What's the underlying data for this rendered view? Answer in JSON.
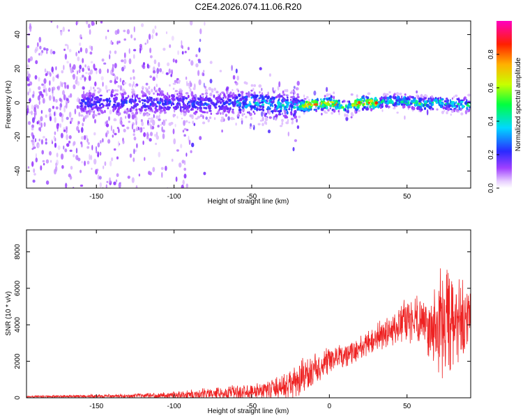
{
  "title": "C2E4.2026.074.11.06.R20",
  "chart_data": [
    {
      "type": "heatmap",
      "xlabel": "Height of straight line (km)",
      "ylabel": "Frequency (Hz)",
      "xlim": [
        -195,
        91
      ],
      "ylim": [
        -50,
        48
      ],
      "xticks": [
        -150,
        -100,
        -50,
        0,
        50
      ],
      "yticks": [
        -40,
        -20,
        0,
        20,
        40
      ],
      "colorbar": {
        "label": "Normalized spectral amplitude",
        "range": [
          0.0,
          1.0
        ],
        "ticks": [
          "0.0",
          "0.2",
          "0.4",
          "0.6",
          "0.8"
        ],
        "colormap": "rainbow (white-violet-blue-cyan-green-yellow-red-magenta)"
      },
      "ridge": {
        "description": "frequency centroid vs height; strong narrow band near 0 Hz for height > -20 km",
        "x": [
          -195,
          -150,
          -120,
          -100,
          -80,
          -60,
          -50,
          -40,
          -30,
          -20,
          -10,
          0,
          5,
          10,
          20,
          30,
          40,
          50,
          60,
          70,
          80,
          91
        ],
        "y": [
          0,
          0,
          0,
          0,
          -1,
          0,
          0,
          -1,
          -2,
          -2,
          -1,
          0,
          -1,
          -3,
          0,
          0,
          1,
          1,
          -1,
          0,
          -1,
          -1
        ]
      }
    },
    {
      "type": "line",
      "xlabel": "Height of straight line (km)",
      "ylabel": "SNR (10 * v/v)",
      "xlim": [
        -195,
        91
      ],
      "ylim": [
        0,
        9200
      ],
      "xticks": [
        -150,
        -100,
        -50,
        0,
        50
      ],
      "yticks": [
        0,
        2000,
        4000,
        6000,
        8000
      ],
      "series": [
        {
          "color": "#ee2222",
          "envelope": {
            "x": [
              -195,
              -150,
              -120,
              -100,
              -90,
              -80,
              -70,
              -60,
              -50,
              -40,
              -30,
              -25,
              -20,
              -15,
              -10,
              -5,
              0,
              5,
              10,
              15,
              20,
              25,
              30,
              35,
              40,
              45,
              50,
              55,
              60,
              62,
              65,
              70,
              75,
              80,
              85,
              91
            ],
            "mean": [
              60,
              90,
              120,
              150,
              180,
              220,
              260,
              300,
              350,
              450,
              600,
              700,
              900,
              1200,
              1500,
              1700,
              2000,
              2200,
              2300,
              2500,
              2700,
              3000,
              3300,
              3500,
              3700,
              3900,
              4200,
              4400,
              4300,
              4000,
              3700,
              4000,
              4200,
              4000,
              3900,
              4500
            ],
            "amp": [
              60,
              100,
              120,
              200,
              300,
              300,
              350,
              400,
              450,
              500,
              700,
              800,
              1200,
              1000,
              900,
              800,
              800,
              700,
              700,
              700,
              700,
              700,
              800,
              900,
              1000,
              1000,
              1400,
              1400,
              1200,
              1500,
              2000,
              3000,
              3500,
              3000,
              2500,
              1500
            ]
          }
        }
      ]
    }
  ]
}
